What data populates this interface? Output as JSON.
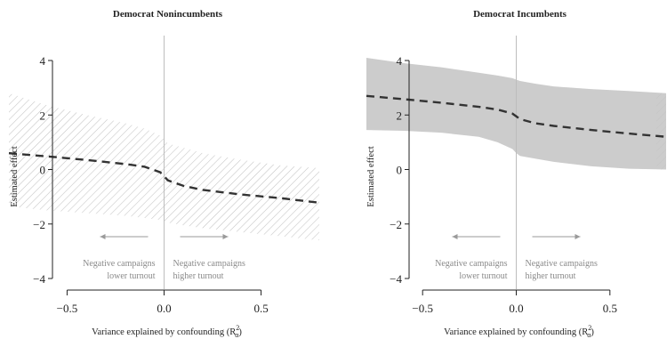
{
  "chart_data": [
    {
      "type": "line",
      "title": "Democrat Nonincumbents",
      "xlabel": "Variance explained by confounding (R",
      "xlabel_sub": "α",
      "xlabel_sup": "2",
      "xlabel_close": ")",
      "ylabel": "Estimated effect",
      "xlim": [
        -0.8,
        0.8
      ],
      "ylim": [
        -4,
        4
      ],
      "xticks": [
        -0.5,
        0.0,
        0.5
      ],
      "xtick_labels": [
        "−0.5",
        "0.0",
        "0.5"
      ],
      "yticks": [
        -4,
        -2,
        0,
        2,
        4
      ],
      "ytick_labels": [
        "−4",
        "−2",
        "0",
        "2",
        "4"
      ],
      "band_style": "hatched",
      "x": [
        -0.8,
        -0.6,
        -0.4,
        -0.2,
        -0.1,
        -0.02,
        0.0,
        0.02,
        0.1,
        0.2,
        0.4,
        0.6,
        0.8
      ],
      "estimate": [
        0.6,
        0.48,
        0.35,
        0.2,
        0.1,
        -0.1,
        -0.25,
        -0.4,
        -0.6,
        -0.75,
        -0.92,
        -1.05,
        -1.22
      ],
      "lower": [
        -1.35,
        -1.5,
        -1.6,
        -1.7,
        -1.78,
        -1.85,
        -1.9,
        -1.95,
        -2.05,
        -2.15,
        -2.3,
        -2.45,
        -2.6
      ],
      "upper": [
        2.8,
        2.35,
        2.0,
        1.7,
        1.5,
        1.25,
        1.1,
        0.95,
        0.8,
        0.6,
        0.35,
        0.15,
        0.05
      ],
      "annotations": {
        "left_line1": "Negative campaigns",
        "left_line2": "lower turnout",
        "right_line1": "Negative campaigns",
        "right_line2": "higher turnout"
      }
    },
    {
      "type": "line",
      "title": "Democrat Incumbents",
      "xlabel": "Variance explained by confounding (R",
      "xlabel_sub": "α",
      "xlabel_sup": "2",
      "xlabel_close": ")",
      "ylabel": "Estimated effect",
      "xlim": [
        -0.8,
        0.8
      ],
      "ylim": [
        -4,
        4
      ],
      "xticks": [
        -0.5,
        0.0,
        0.5
      ],
      "xtick_labels": [
        "−0.5",
        "0.0",
        "0.5"
      ],
      "yticks": [
        -4,
        -2,
        0,
        2,
        4
      ],
      "ytick_labels": [
        "−4",
        "−2",
        "0",
        "2",
        "4"
      ],
      "band_style": "solid",
      "x": [
        -0.8,
        -0.6,
        -0.4,
        -0.2,
        -0.1,
        -0.02,
        0.0,
        0.02,
        0.1,
        0.2,
        0.4,
        0.6,
        0.8
      ],
      "estimate": [
        2.7,
        2.58,
        2.45,
        2.3,
        2.2,
        2.05,
        1.95,
        1.85,
        1.7,
        1.6,
        1.45,
        1.32,
        1.2
      ],
      "lower": [
        1.45,
        1.42,
        1.35,
        1.2,
        1.0,
        0.75,
        0.6,
        0.5,
        0.4,
        0.28,
        0.12,
        0.03,
        0.0
      ],
      "upper": [
        4.1,
        3.9,
        3.75,
        3.55,
        3.45,
        3.35,
        3.3,
        3.25,
        3.15,
        3.05,
        2.95,
        2.88,
        2.8
      ],
      "annotations": {
        "left_line1": "Negative campaigns",
        "left_line2": "lower turnout",
        "right_line1": "Negative campaigns",
        "right_line2": "higher turnout"
      }
    }
  ]
}
